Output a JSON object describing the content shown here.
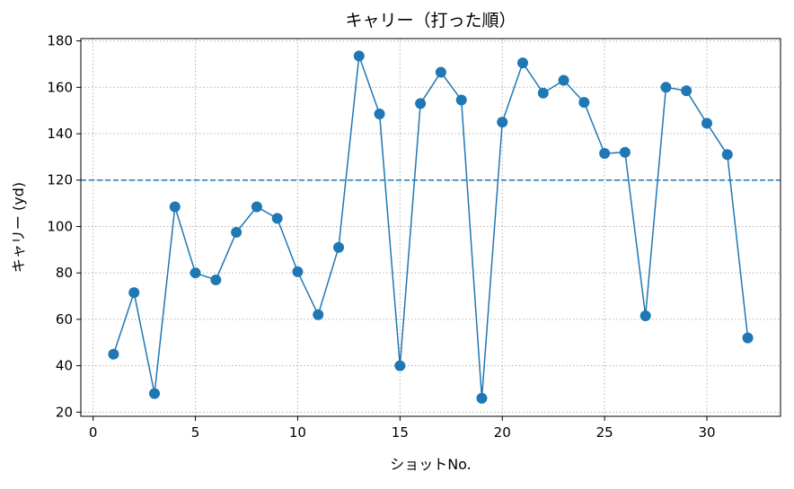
{
  "chart_data": {
    "type": "line",
    "title": "キャリー（打った順）",
    "xlabel": "ショットNo.",
    "ylabel": "キャリー (yd)",
    "xlim": [
      -0.6,
      33.6
    ],
    "ylim": [
      18.2,
      181
    ],
    "x_ticks": [
      0,
      5,
      10,
      15,
      20,
      25,
      30
    ],
    "y_ticks": [
      20,
      40,
      60,
      80,
      100,
      120,
      140,
      160,
      180
    ],
    "grid": true,
    "grid_style": "dotted",
    "line_color": "#1f77b4",
    "reference_line": {
      "y": 120,
      "style": "dashed",
      "color": "#1f77b4"
    },
    "series": [
      {
        "x": [
          1,
          2,
          3,
          4,
          5,
          6,
          7,
          8,
          9,
          10,
          11,
          12,
          13,
          14,
          15,
          16,
          17,
          18,
          19,
          20,
          21,
          22,
          23,
          24,
          25,
          26,
          27,
          28,
          29,
          30,
          31,
          32
        ],
        "values": [
          45,
          71.5,
          28,
          108.5,
          80,
          77,
          97.5,
          108.5,
          103.5,
          80.5,
          62,
          91,
          173.5,
          148.5,
          40,
          153,
          166.5,
          154.5,
          26,
          145,
          170.5,
          157.5,
          163,
          153.5,
          131.5,
          132,
          61.5,
          160,
          158.5,
          144.5,
          131,
          52
        ]
      }
    ]
  }
}
